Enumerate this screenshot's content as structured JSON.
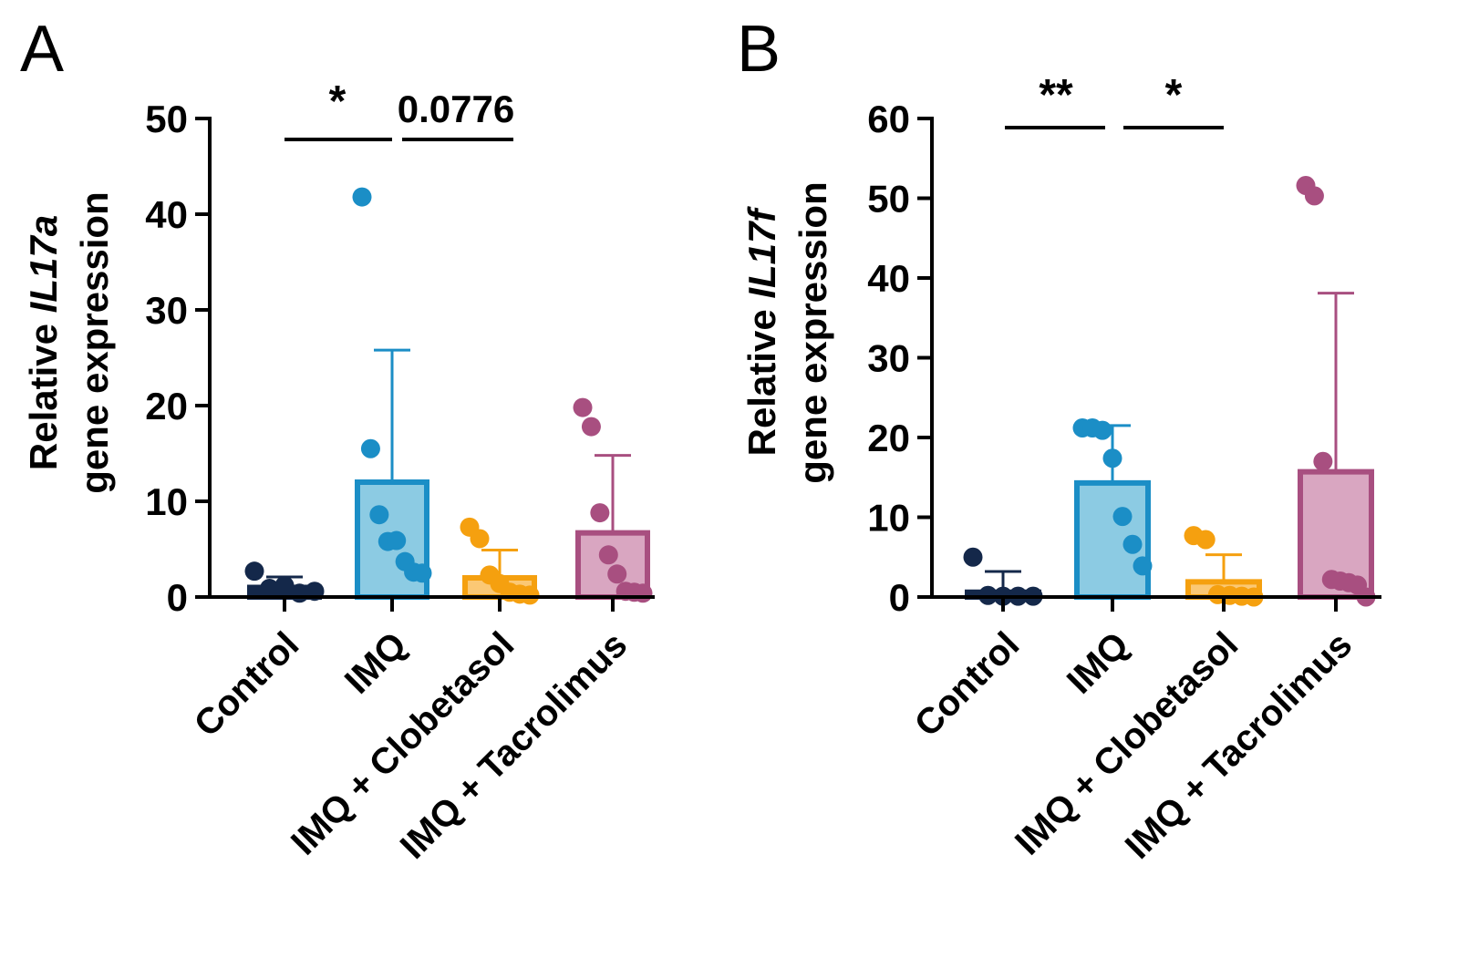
{
  "chart_data": [
    {
      "type": "bar",
      "panel": "A",
      "ylabel_line1_prefix": "Relative ",
      "ylabel_line1_gene": "IL17a",
      "ylabel_line2": "gene expression",
      "ylim": [
        0,
        50
      ],
      "yticks": [
        "0",
        "10",
        "20",
        "30",
        "40",
        "50"
      ],
      "categories": [
        "Control",
        "IMQ",
        "IMQ + Clobetasol",
        "IMQ + Tacrolimus"
      ],
      "series": [
        {
          "color": "#14284a",
          "fill": "#14284a",
          "mean": 1.0,
          "sd_upper": 2.1,
          "points": [
            2.7,
            0.9,
            1.2,
            0.4,
            0.6
          ]
        },
        {
          "color": "#1b8ec6",
          "fill": "#8ccbe3",
          "mean": 12.0,
          "sd_upper": 25.8,
          "points": [
            41.8,
            15.5,
            8.6,
            5.8,
            5.9,
            3.7,
            2.6,
            2.5
          ]
        },
        {
          "color": "#f5a00f",
          "fill": "#fbc874",
          "mean": 2.0,
          "sd_upper": 4.9,
          "points": [
            7.3,
            6.1,
            2.3,
            1.4,
            0.5,
            0.3,
            0.2
          ]
        },
        {
          "color": "#a84f80",
          "fill": "#d9a6c1",
          "mean": 6.7,
          "sd_upper": 14.8,
          "points": [
            19.8,
            17.8,
            8.8,
            4.4,
            2.4,
            0.6,
            0.5,
            0.4
          ]
        }
      ],
      "significance": [
        {
          "label": "*",
          "from": 0,
          "to": 1
        },
        {
          "label": "0.0776",
          "from": 1,
          "to": 2
        }
      ]
    },
    {
      "type": "bar",
      "panel": "B",
      "ylabel_line1_prefix": "Relative ",
      "ylabel_line1_gene": "IL17f",
      "ylabel_line2": "gene expression",
      "ylim": [
        0,
        60
      ],
      "yticks": [
        "0",
        "10",
        "20",
        "30",
        "40",
        "50",
        "60"
      ],
      "categories": [
        "Control",
        "IMQ",
        "IMQ + Clobetasol",
        "IMQ + Tacrolimus"
      ],
      "series": [
        {
          "color": "#14284a",
          "fill": "#14284a",
          "mean": 0.6,
          "sd_upper": 3.2,
          "points": [
            5.0,
            0.2,
            0.1,
            0.1,
            0.1
          ]
        },
        {
          "color": "#1b8ec6",
          "fill": "#8ccbe3",
          "mean": 14.3,
          "sd_upper": 21.5,
          "points": [
            21.2,
            21.2,
            20.9,
            17.4,
            10.1,
            6.6,
            3.9
          ]
        },
        {
          "color": "#f5a00f",
          "fill": "#fbc874",
          "mean": 1.9,
          "sd_upper": 5.3,
          "points": [
            7.7,
            7.2,
            0.3,
            0.2,
            0.1,
            0.0
          ]
        },
        {
          "color": "#a84f80",
          "fill": "#d9a6c1",
          "mean": 15.7,
          "sd_upper": 38.1,
          "points": [
            51.6,
            50.3,
            17.0,
            2.2,
            2.0,
            1.8,
            1.5,
            0.0
          ]
        }
      ],
      "significance": [
        {
          "label": "**",
          "from": 0,
          "to": 1
        },
        {
          "label": "*",
          "from": 1,
          "to": 2
        }
      ]
    }
  ]
}
